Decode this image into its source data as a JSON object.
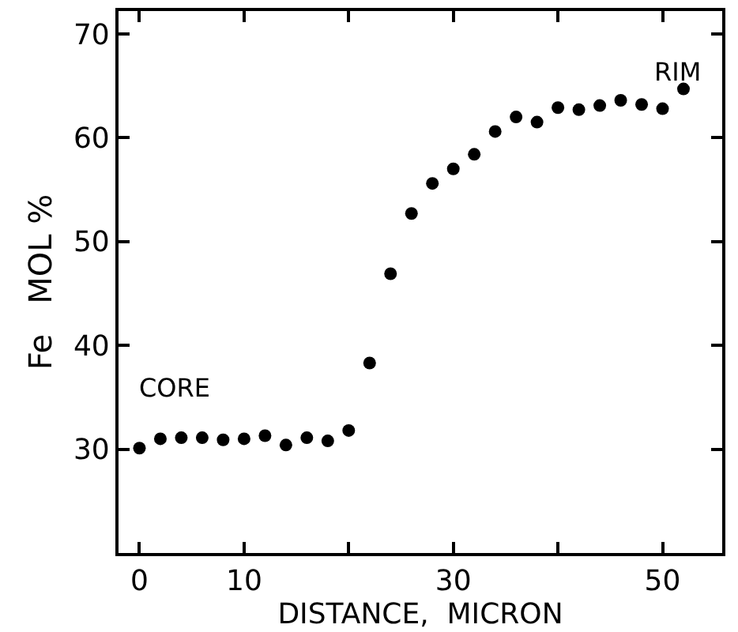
{
  "chart_data": {
    "type": "scatter",
    "xlabel": "DISTANCE,  MICRON",
    "ylabel": "Fe   MOL %",
    "x": [
      0,
      2,
      4,
      6,
      8,
      10,
      12,
      14,
      16,
      18,
      20,
      22,
      24,
      26,
      28,
      30,
      32,
      34,
      36,
      38,
      40,
      42,
      44,
      46,
      48,
      50,
      52
    ],
    "series": [
      {
        "color": "#000000",
        "values": [
          30.1,
          31.0,
          31.1,
          31.1,
          30.9,
          31.0,
          31.3,
          30.4,
          31.1,
          30.8,
          31.8,
          38.3,
          46.9,
          52.7,
          55.6,
          57.0,
          58.4,
          60.6,
          62.0,
          61.5,
          62.9,
          62.7,
          63.1,
          63.6,
          63.2,
          62.8,
          64.7
        ]
      }
    ],
    "marker": "circle",
    "xlim": [
      -2,
      55.7
    ],
    "ylim": [
      20,
      72.2
    ],
    "xticks": [
      0,
      10,
      {
        "value": 20,
        "label": null
      },
      30,
      {
        "value": 40,
        "label": null
      },
      50
    ],
    "yticks": [
      30,
      40,
      50,
      60,
      70
    ],
    "annotations": [
      "CORE",
      "RIM"
    ],
    "tick_labels": "xy"
  }
}
